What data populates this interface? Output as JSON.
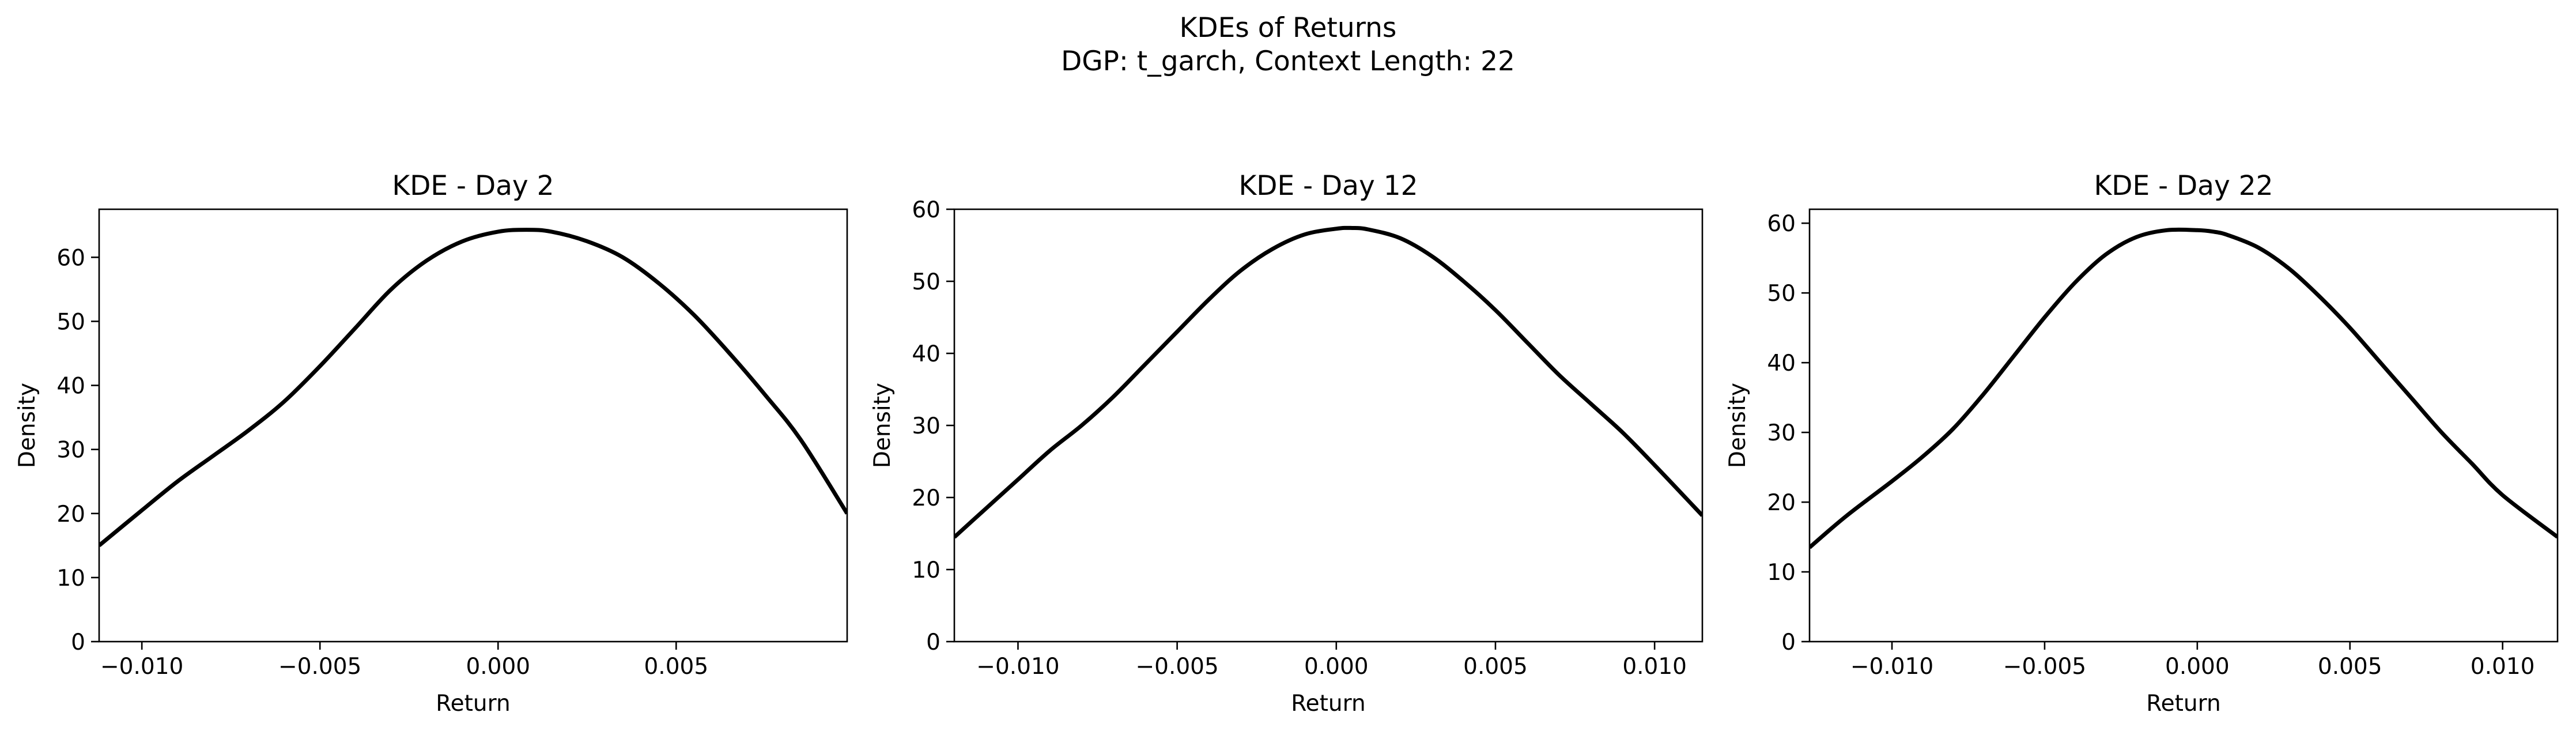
{
  "figure": {
    "title_line1": "KDEs of Returns",
    "title_line2": "DGP: t_garch, Context Length: 22"
  },
  "chart_data": [
    {
      "type": "line",
      "title": "KDE - Day 2",
      "xlabel": "Return",
      "ylabel": "Density",
      "xlim": [
        -0.0112,
        0.0098
      ],
      "ylim": [
        0,
        67.5
      ],
      "xticks": [
        -0.01,
        -0.005,
        0.0,
        0.005
      ],
      "xtick_labels": [
        "−0.010",
        "−0.005",
        "0.000",
        "0.005"
      ],
      "yticks": [
        0,
        10,
        20,
        30,
        40,
        50,
        60
      ],
      "ytick_labels": [
        "0",
        "10",
        "20",
        "30",
        "40",
        "50",
        "60"
      ],
      "grid": false,
      "line_color": "#000000",
      "series": [
        {
          "x": [
            -0.0112,
            -0.01,
            -0.009,
            -0.008,
            -0.007,
            -0.006,
            -0.005,
            -0.004,
            -0.003,
            -0.002,
            -0.001,
            0.0,
            0.0008,
            0.0015,
            0.0025,
            0.0035,
            0.0045,
            0.0055,
            0.0065,
            0.0075,
            0.0085,
            0.0098
          ],
          "y": [
            15.0,
            20.5,
            25.0,
            29.0,
            33.0,
            37.5,
            43.0,
            49.0,
            55.0,
            59.5,
            62.5,
            64.0,
            64.3,
            64.0,
            62.5,
            60.0,
            56.0,
            51.0,
            45.0,
            38.5,
            31.5,
            20.0
          ]
        }
      ]
    },
    {
      "type": "line",
      "title": "KDE - Day 12",
      "xlabel": "Return",
      "ylabel": "Density",
      "xlim": [
        -0.012,
        0.0115
      ],
      "ylim": [
        0,
        60
      ],
      "xticks": [
        -0.01,
        -0.005,
        0.0,
        0.005,
        0.01
      ],
      "xtick_labels": [
        "−0.010",
        "−0.005",
        "0.000",
        "0.005",
        "0.010"
      ],
      "yticks": [
        0,
        10,
        20,
        30,
        40,
        50,
        60
      ],
      "ytick_labels": [
        "0",
        "10",
        "20",
        "30",
        "40",
        "50",
        "60"
      ],
      "grid": false,
      "line_color": "#000000",
      "series": [
        {
          "x": [
            -0.012,
            -0.011,
            -0.01,
            -0.009,
            -0.008,
            -0.007,
            -0.006,
            -0.005,
            -0.004,
            -0.003,
            -0.002,
            -0.001,
            0.0,
            0.0005,
            0.001,
            0.002,
            0.003,
            0.004,
            0.005,
            0.006,
            0.007,
            0.008,
            0.009,
            0.01,
            0.0115
          ],
          "y": [
            14.5,
            18.5,
            22.5,
            26.5,
            30.0,
            34.0,
            38.5,
            43.0,
            47.5,
            51.5,
            54.5,
            56.5,
            57.3,
            57.4,
            57.2,
            56.0,
            53.5,
            50.0,
            46.0,
            41.5,
            37.0,
            33.0,
            29.0,
            24.5,
            17.5
          ]
        }
      ]
    },
    {
      "type": "line",
      "title": "KDE - Day 22",
      "xlabel": "Return",
      "ylabel": "Density",
      "xlim": [
        -0.0127,
        0.0118
      ],
      "ylim": [
        0,
        62
      ],
      "xticks": [
        -0.01,
        -0.005,
        0.0,
        0.005,
        0.01
      ],
      "xtick_labels": [
        "−0.010",
        "−0.005",
        "0.000",
        "0.005",
        "0.010"
      ],
      "yticks": [
        0,
        10,
        20,
        30,
        40,
        50,
        60
      ],
      "ytick_labels": [
        "0",
        "10",
        "20",
        "30",
        "40",
        "50",
        "60"
      ],
      "grid": false,
      "line_color": "#000000",
      "series": [
        {
          "x": [
            -0.0127,
            -0.0115,
            -0.01,
            -0.009,
            -0.008,
            -0.007,
            -0.006,
            -0.005,
            -0.004,
            -0.003,
            -0.002,
            -0.001,
            0.0,
            0.0005,
            0.001,
            0.002,
            0.003,
            0.004,
            0.005,
            0.006,
            0.007,
            0.008,
            0.009,
            0.01,
            0.0118
          ],
          "y": [
            13.5,
            18.0,
            23.0,
            26.5,
            30.5,
            35.5,
            41.0,
            46.5,
            51.5,
            55.5,
            58.0,
            59.0,
            59.0,
            58.8,
            58.3,
            56.5,
            53.5,
            49.5,
            45.0,
            40.0,
            35.0,
            30.0,
            25.5,
            21.0,
            15.0
          ]
        }
      ]
    }
  ]
}
